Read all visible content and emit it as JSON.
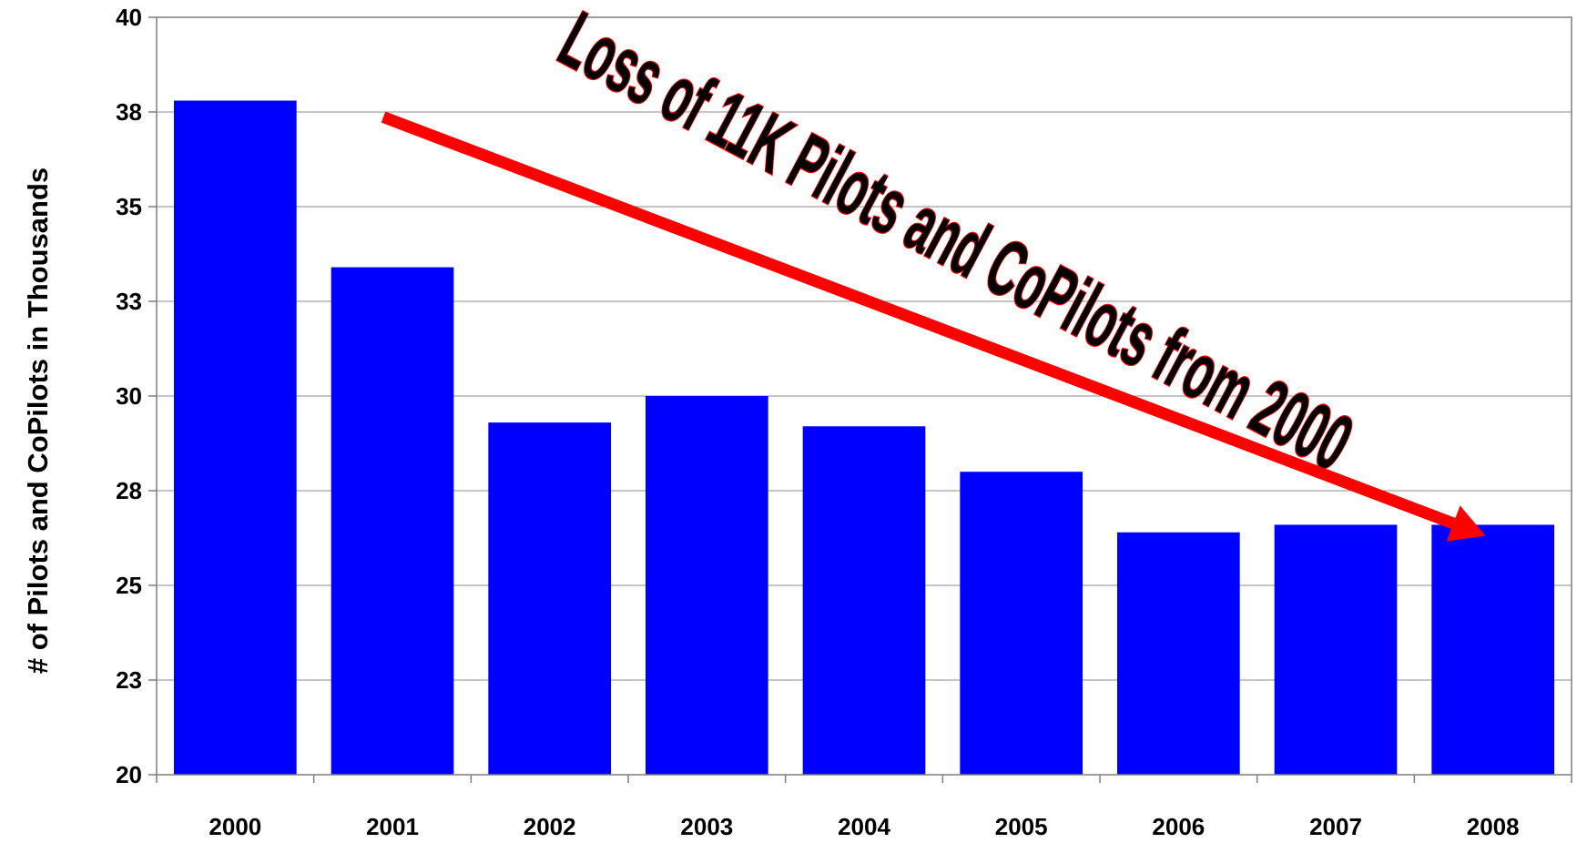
{
  "chart_data": {
    "type": "bar",
    "categories": [
      "2000",
      "2001",
      "2002",
      "2003",
      "2004",
      "2005",
      "2006",
      "2007",
      "2008"
    ],
    "values": [
      37.8,
      33.4,
      29.3,
      30.0,
      29.2,
      28.0,
      26.4,
      26.6,
      26.6
    ],
    "title": "",
    "xlabel": "",
    "ylabel": "# of Pilots and CoPilots in Thousands",
    "ylim": [
      20,
      40
    ],
    "yticks": [
      20,
      22.5,
      25,
      27.5,
      30,
      32.5,
      35,
      37.5,
      40
    ],
    "ytick_labels": [
      "20",
      "23",
      "25",
      "28",
      "30",
      "33",
      "35",
      "38",
      "40"
    ],
    "grid": true,
    "legend": "none",
    "bar_color": "#0000ff",
    "annotation": {
      "text": "Loss of 11K Pilots and CoPilots from 2000",
      "text_color": "#000000",
      "outline_color": "#ff0000",
      "arrow_color": "#ff0000",
      "arrow_from_category": "2001",
      "arrow_to_category": "2008"
    }
  }
}
